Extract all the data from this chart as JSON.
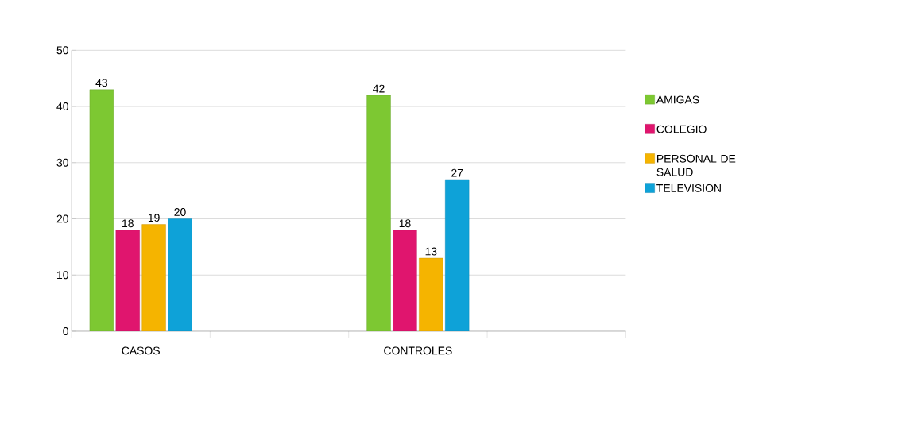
{
  "chart_data": {
    "type": "bar",
    "categories": [
      "CASOS",
      null,
      "CONTROLES",
      null
    ],
    "series": [
      {
        "name": "AMIGAS",
        "color": "#7dc832",
        "values": [
          43,
          null,
          42,
          null
        ]
      },
      {
        "name": "COLEGIO",
        "color": "#e0156e",
        "values": [
          18,
          null,
          18,
          null
        ]
      },
      {
        "name": "PERSONAL DE SALUD",
        "color": "#f5b400",
        "values": [
          19,
          null,
          13,
          null
        ]
      },
      {
        "name": "TELEVISION",
        "color": "#0ea2d8",
        "values": [
          20,
          null,
          27,
          null
        ]
      }
    ],
    "ylim": [
      0,
      50
    ],
    "yticks": [
      0,
      10,
      20,
      30,
      40,
      50
    ],
    "grid": "y",
    "legend": "right",
    "data_labels": true
  }
}
